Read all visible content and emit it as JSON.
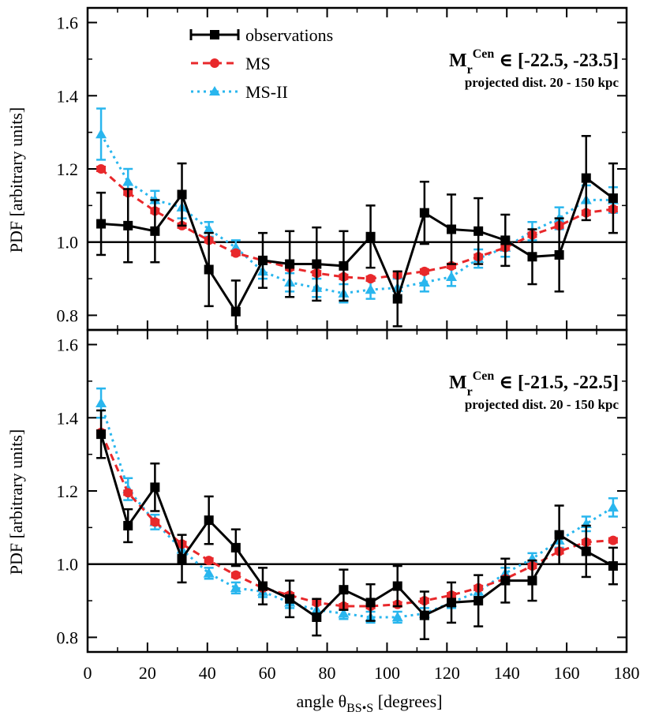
{
  "chart_data": [
    {
      "type": "line",
      "xlabel": "angle θBS•S [degrees]",
      "ylabel": "PDF [arbitrary units]",
      "xlim": [
        0,
        180
      ],
      "ylim": [
        0.76,
        1.64
      ],
      "xticks": [
        "0",
        "20",
        "40",
        "60",
        "80",
        "100",
        "120",
        "140",
        "160",
        "180"
      ],
      "yticks": [
        "0.8",
        "1.0",
        "1.2",
        "1.4",
        "1.6"
      ],
      "reference_line_y": 1.0,
      "legend": {
        "position": "top-left",
        "entries": [
          "observations",
          "MS",
          "MS-II"
        ]
      },
      "annotation": {
        "line1": "Mr Cen ∈ [-22.5, -23.5]",
        "line2": "projected dist. 20 - 150 kpc"
      },
      "x": [
        4.5,
        13.5,
        22.5,
        31.5,
        40.5,
        49.5,
        58.5,
        67.5,
        76.5,
        85.5,
        94.5,
        103.5,
        112.5,
        121.5,
        130.5,
        139.5,
        148.5,
        157.5,
        166.5,
        175.5
      ],
      "series": [
        {
          "name": "observations",
          "color": "#000000",
          "values": [
            1.05,
            1.045,
            1.03,
            1.13,
            0.925,
            0.81,
            0.95,
            0.94,
            0.94,
            0.935,
            1.015,
            0.845,
            1.08,
            1.035,
            1.03,
            1.005,
            0.96,
            0.965,
            1.175,
            1.12
          ],
          "errors": [
            0.085,
            0.1,
            0.085,
            0.085,
            0.1,
            0.085,
            0.075,
            0.09,
            0.1,
            0.095,
            0.085,
            0.075,
            0.085,
            0.095,
            0.09,
            0.07,
            0.075,
            0.1,
            0.115,
            0.095
          ]
        },
        {
          "name": "MS",
          "color": "#e8282b",
          "values": [
            1.2,
            1.135,
            1.085,
            1.045,
            1.005,
            0.97,
            0.95,
            0.93,
            0.915,
            0.905,
            0.9,
            0.91,
            0.92,
            0.935,
            0.96,
            0.985,
            1.02,
            1.045,
            1.08,
            1.09
          ],
          "errors": [
            0.006,
            0.006,
            0.006,
            0.006,
            0.006,
            0.006,
            0.006,
            0.006,
            0.006,
            0.006,
            0.006,
            0.006,
            0.006,
            0.006,
            0.006,
            0.006,
            0.006,
            0.006,
            0.006,
            0.006
          ]
        },
        {
          "name": "MS-II",
          "color": "#29b6ee",
          "values": [
            1.295,
            1.165,
            1.115,
            1.095,
            1.035,
            0.985,
            0.92,
            0.89,
            0.875,
            0.86,
            0.87,
            0.875,
            0.89,
            0.905,
            0.955,
            0.985,
            1.03,
            1.065,
            1.115,
            1.115
          ],
          "errors": [
            0.07,
            0.035,
            0.025,
            0.03,
            0.02,
            0.02,
            0.02,
            0.025,
            0.025,
            0.025,
            0.025,
            0.025,
            0.025,
            0.025,
            0.025,
            0.025,
            0.025,
            0.03,
            0.04,
            0.035
          ]
        }
      ]
    },
    {
      "type": "line",
      "xlabel": "angle θBS•S [degrees]",
      "ylabel": "PDF [arbitrary units]",
      "xlim": [
        0,
        180
      ],
      "ylim": [
        0.76,
        1.64
      ],
      "xticks": [
        "0",
        "20",
        "40",
        "60",
        "80",
        "100",
        "120",
        "140",
        "160",
        "180"
      ],
      "yticks": [
        "0.8",
        "1.0",
        "1.2",
        "1.4",
        "1.6"
      ],
      "reference_line_y": 1.0,
      "annotation": {
        "line1": "Mr Cen ∈ [-21.5, -22.5]",
        "line2": "projected dist. 20 - 150 kpc"
      },
      "x": [
        4.5,
        13.5,
        22.5,
        31.5,
        40.5,
        49.5,
        58.5,
        67.5,
        76.5,
        85.5,
        94.5,
        103.5,
        112.5,
        121.5,
        130.5,
        139.5,
        148.5,
        157.5,
        166.5,
        175.5
      ],
      "series": [
        {
          "name": "observations",
          "color": "#000000",
          "values": [
            1.355,
            1.105,
            1.21,
            1.015,
            1.12,
            1.045,
            0.94,
            0.905,
            0.855,
            0.93,
            0.895,
            0.94,
            0.86,
            0.895,
            0.9,
            0.955,
            0.955,
            1.08,
            1.035,
            0.995
          ],
          "errors": [
            0.065,
            0.045,
            0.065,
            0.065,
            0.065,
            0.05,
            0.05,
            0.05,
            0.05,
            0.055,
            0.05,
            0.055,
            0.065,
            0.055,
            0.07,
            0.06,
            0.055,
            0.08,
            0.07,
            0.05
          ]
        },
        {
          "name": "MS",
          "color": "#e8282b",
          "values": [
            1.36,
            1.195,
            1.115,
            1.055,
            1.01,
            0.97,
            0.935,
            0.915,
            0.895,
            0.885,
            0.885,
            0.89,
            0.9,
            0.915,
            0.935,
            0.96,
            0.995,
            1.035,
            1.06,
            1.065
          ],
          "errors": [
            0.006,
            0.006,
            0.006,
            0.006,
            0.006,
            0.006,
            0.006,
            0.006,
            0.006,
            0.006,
            0.006,
            0.006,
            0.006,
            0.006,
            0.006,
            0.006,
            0.006,
            0.006,
            0.006,
            0.006
          ]
        },
        {
          "name": "MS-II",
          "color": "#29b6ee",
          "values": [
            1.44,
            1.205,
            1.115,
            1.04,
            0.975,
            0.935,
            0.925,
            0.895,
            0.875,
            0.865,
            0.855,
            0.855,
            0.865,
            0.895,
            0.925,
            0.975,
            1.015,
            1.065,
            1.11,
            1.155
          ],
          "errors": [
            0.04,
            0.03,
            0.02,
            0.02,
            0.015,
            0.015,
            0.015,
            0.015,
            0.015,
            0.015,
            0.015,
            0.015,
            0.015,
            0.015,
            0.015,
            0.015,
            0.015,
            0.02,
            0.02,
            0.025
          ]
        }
      ]
    }
  ]
}
